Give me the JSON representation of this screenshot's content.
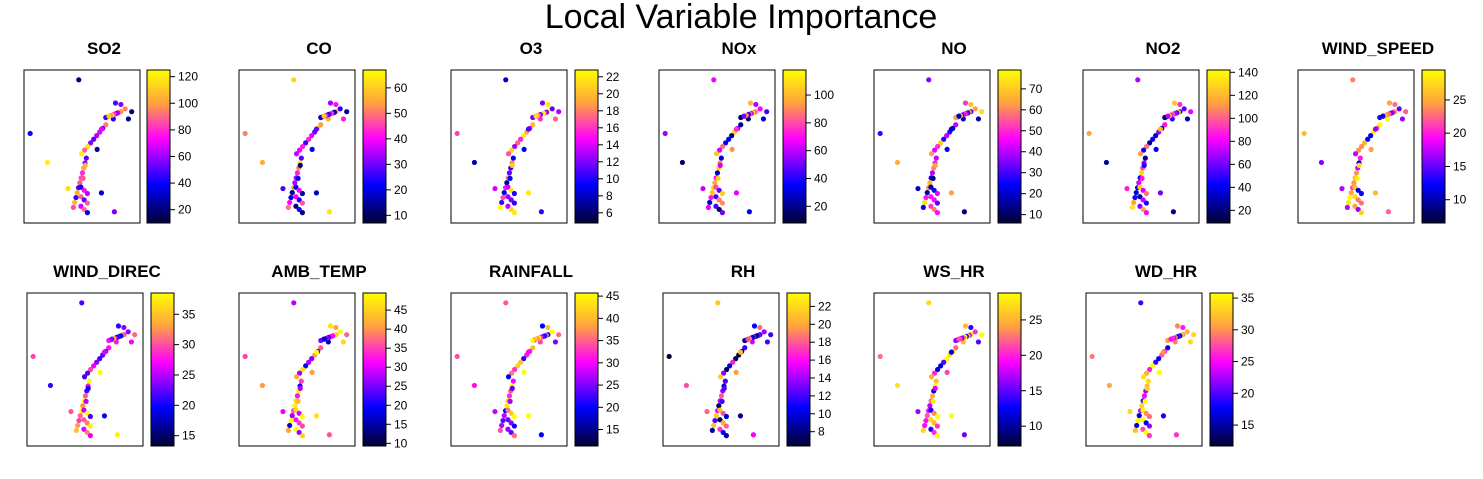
{
  "title": "Local Variable Importance",
  "colors": {
    "scale": [
      "#000033",
      "#0000ff",
      "#ff00ff",
      "#ffa040",
      "#ffff00"
    ],
    "frame": "#000000"
  },
  "chart_data": [
    {
      "type": "scatter",
      "title": "SO2",
      "ticks": [
        20,
        40,
        60,
        80,
        100,
        120
      ],
      "range": [
        10,
        125
      ]
    },
    {
      "type": "scatter",
      "title": "CO",
      "ticks": [
        10,
        20,
        30,
        40,
        50,
        60
      ],
      "range": [
        7,
        67
      ]
    },
    {
      "type": "scatter",
      "title": "O3",
      "ticks": [
        6,
        8,
        10,
        12,
        14,
        16,
        18,
        20,
        22
      ],
      "range": [
        4.8,
        22.8
      ]
    },
    {
      "type": "scatter",
      "title": "NOx",
      "ticks": [
        20,
        40,
        60,
        80,
        100
      ],
      "range": [
        8,
        118
      ]
    },
    {
      "type": "scatter",
      "title": "NO",
      "ticks": [
        10,
        20,
        30,
        40,
        50,
        60,
        70
      ],
      "range": [
        6,
        79
      ]
    },
    {
      "type": "scatter",
      "title": "NO2",
      "ticks": [
        20,
        40,
        60,
        80,
        100,
        120,
        140
      ],
      "range": [
        9,
        142
      ]
    },
    {
      "type": "scatter",
      "title": "WIND_SPEED",
      "ticks": [
        10,
        15,
        20,
        25
      ],
      "range": [
        6.5,
        29.5
      ]
    },
    {
      "type": "scatter",
      "title": "WIND_DIREC",
      "ticks": [
        15,
        20,
        25,
        30,
        35
      ],
      "range": [
        13.3,
        38.5
      ]
    },
    {
      "type": "scatter",
      "title": "AMB_TEMP",
      "ticks": [
        10,
        15,
        20,
        25,
        30,
        35,
        40,
        45
      ],
      "range": [
        9.3,
        49.5
      ]
    },
    {
      "type": "scatter",
      "title": "RAINFALL",
      "ticks": [
        15,
        20,
        25,
        30,
        35,
        40,
        45
      ],
      "range": [
        11.3,
        45.7
      ]
    },
    {
      "type": "scatter",
      "title": "RH",
      "ticks": [
        8,
        10,
        12,
        14,
        16,
        18,
        20,
        22
      ],
      "range": [
        6.4,
        23.5
      ]
    },
    {
      "type": "scatter",
      "title": "WS_HR",
      "ticks": [
        10,
        15,
        20,
        25
      ],
      "range": [
        7.2,
        28.8
      ]
    },
    {
      "type": "scatter",
      "title": "WD_HR",
      "ticks": [
        15,
        20,
        25,
        30,
        35
      ],
      "range": [
        11.7,
        35.8
      ]
    }
  ]
}
